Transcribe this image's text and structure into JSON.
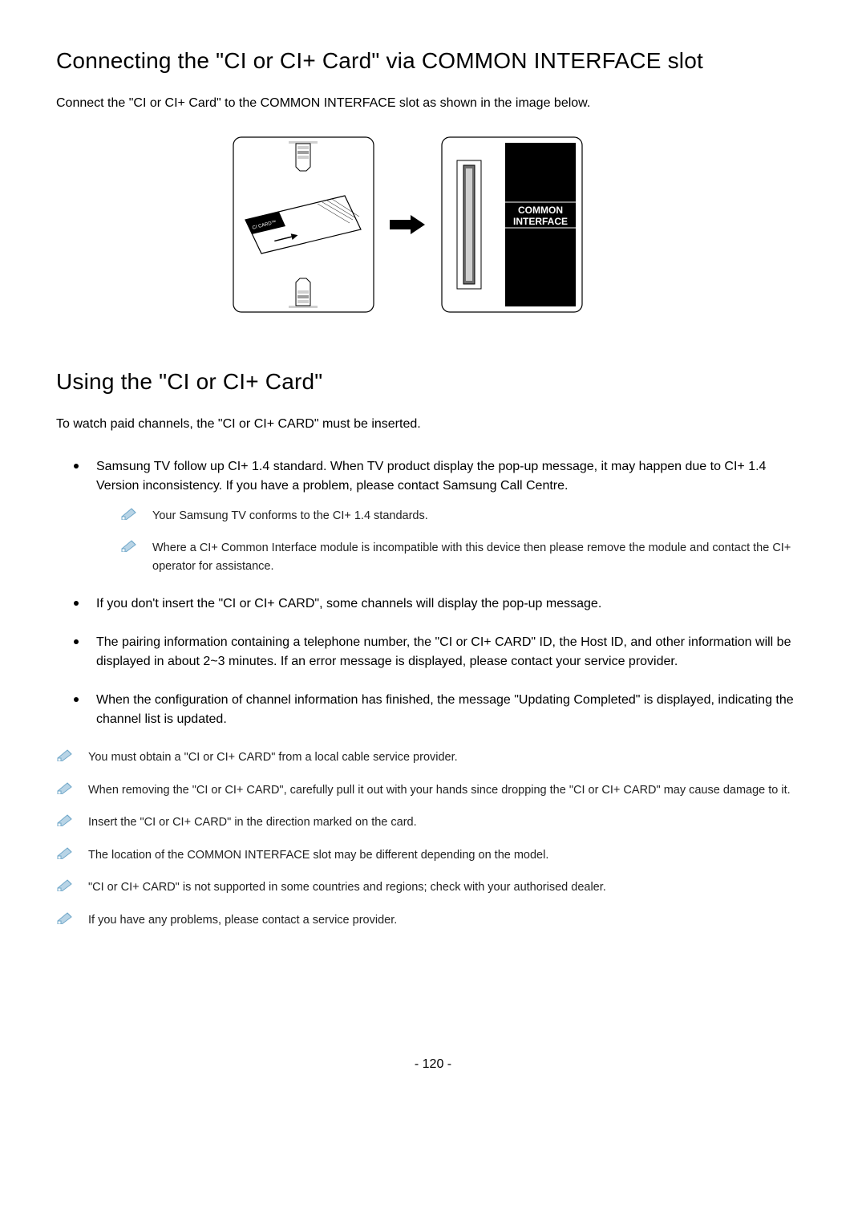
{
  "section1": {
    "title": "Connecting the \"CI or CI+ Card\" via COMMON INTERFACE slot",
    "intro": "Connect the \"CI or CI+ Card\" to the COMMON INTERFACE slot as shown in the image below."
  },
  "diagram": {
    "card_label": "CI CARD™",
    "slot_label_line1": "COMMON",
    "slot_label_line2": "INTERFACE",
    "colors": {
      "stroke": "#000000",
      "bg": "#ffffff",
      "black": "#000000",
      "grey_light": "#cfcfcf",
      "grey_mid": "#9e9e9e",
      "grey_dark": "#6e6e6e"
    }
  },
  "section2": {
    "title": "Using the \"CI or CI+ Card\"",
    "intro": "To watch paid channels, the \"CI or CI+ CARD\" must be inserted.",
    "bullets": [
      "Samsung TV follow up CI+ 1.4 standard. When TV product display the pop-up message, it may happen due to CI+ 1.4 Version inconsistency. If you have a problem, please contact Samsung Call Centre.",
      "If you don't insert the \"CI or CI+ CARD\", some channels will display the pop-up message.",
      "The pairing information containing a telephone number, the \"CI or CI+ CARD\" ID, the Host ID, and other information will be displayed in about 2~3 minutes. If an error message is displayed, please contact your service provider.",
      "When the configuration of channel information has finished, the message \"Updating Completed\" is displayed, indicating the channel list is updated."
    ],
    "sub_notes": [
      "Your Samsung TV conforms to the CI+ 1.4 standards.",
      "Where a CI+ Common Interface module is incompatible with this device then please remove the module and contact the CI+ operator for assistance."
    ],
    "outer_notes": [
      "You must obtain a \"CI or CI+ CARD\" from a local cable service provider.",
      "When removing the \"CI or CI+ CARD\", carefully pull it out with your hands since dropping the \"CI or CI+ CARD\" may cause damage to it.",
      "Insert the \"CI or CI+ CARD\" in the direction marked on the card.",
      "The location of the COMMON INTERFACE slot may be different depending on the model.",
      "\"CI or CI+ CARD\" is not supported in some countries and regions; check with your authorised dealer.",
      "If you have any problems, please contact a service provider."
    ]
  },
  "page_number": "- 120 -",
  "note_icon_colors": {
    "stroke": "#6fa7c9",
    "fill": "#b8d4e6"
  }
}
